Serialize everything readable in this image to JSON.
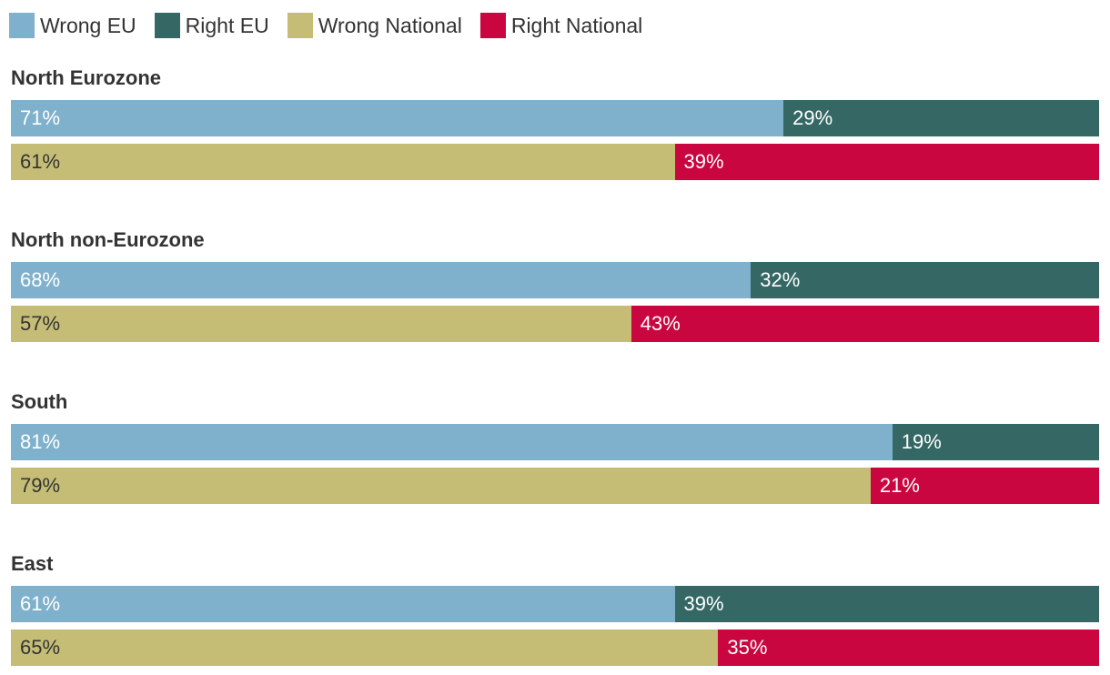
{
  "chart_data": {
    "type": "bar",
    "orientation": "horizontal",
    "stacked": true,
    "legend_position": "top-left",
    "xlim": [
      0,
      100
    ],
    "legend": [
      {
        "name": "Wrong EU",
        "color": "#7fb1cc"
      },
      {
        "name": "Right EU",
        "color": "#356865"
      },
      {
        "name": "Wrong National",
        "color": "#c5bd76"
      },
      {
        "name": "Right National",
        "color": "#c9063f"
      }
    ],
    "groups": [
      {
        "title": "North Eurozone",
        "rows": [
          {
            "segments": [
              {
                "series": "Wrong EU",
                "value": 71,
                "label": "71%"
              },
              {
                "series": "Right EU",
                "value": 29,
                "label": "29%"
              }
            ]
          },
          {
            "segments": [
              {
                "series": "Wrong National",
                "value": 61,
                "label": "61%"
              },
              {
                "series": "Right National",
                "value": 39,
                "label": "39%"
              }
            ]
          }
        ]
      },
      {
        "title": "North non-Eurozone",
        "rows": [
          {
            "segments": [
              {
                "series": "Wrong EU",
                "value": 68,
                "label": "68%"
              },
              {
                "series": "Right EU",
                "value": 32,
                "label": "32%"
              }
            ]
          },
          {
            "segments": [
              {
                "series": "Wrong National",
                "value": 57,
                "label": "57%"
              },
              {
                "series": "Right National",
                "value": 43,
                "label": "43%"
              }
            ]
          }
        ]
      },
      {
        "title": "South",
        "rows": [
          {
            "segments": [
              {
                "series": "Wrong EU",
                "value": 81,
                "label": "81%"
              },
              {
                "series": "Right EU",
                "value": 19,
                "label": "19%"
              }
            ]
          },
          {
            "segments": [
              {
                "series": "Wrong National",
                "value": 79,
                "label": "79%"
              },
              {
                "series": "Right National",
                "value": 21,
                "label": "21%"
              }
            ]
          }
        ]
      },
      {
        "title": "East",
        "rows": [
          {
            "segments": [
              {
                "series": "Wrong EU",
                "value": 61,
                "label": "61%"
              },
              {
                "series": "Right EU",
                "value": 39,
                "label": "39%"
              }
            ]
          },
          {
            "segments": [
              {
                "series": "Wrong National",
                "value": 65,
                "label": "65%"
              },
              {
                "series": "Right National",
                "value": 35,
                "label": "35%"
              }
            ]
          }
        ]
      }
    ]
  }
}
